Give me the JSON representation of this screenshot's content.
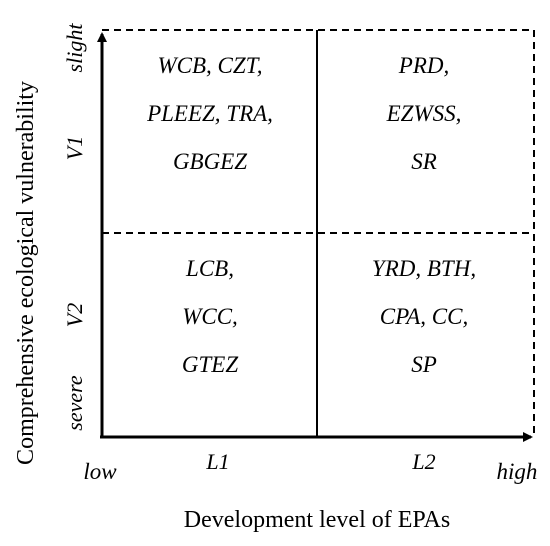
{
  "axes": {
    "y_label": "Comprehensive ecological vulnerability",
    "x_label": "Development level of EPAs",
    "y_top": "slight",
    "y_bottom": "severe",
    "y_levels": [
      "V1",
      "V2"
    ],
    "x_left": "low",
    "x_right": "high",
    "x_levels": [
      "L1",
      "L2"
    ]
  },
  "quadrants": {
    "top_left": [
      "WCB, CZT,",
      "PLEEZ, TRA,",
      "GBGEZ"
    ],
    "top_right": [
      "PRD,",
      "EZWSS,",
      "SR"
    ],
    "bottom_left": [
      "LCB,",
      "WCC,",
      "GTEZ"
    ],
    "bottom_right": [
      "YRD, BTH,",
      "CPA, CC,",
      "SP"
    ]
  }
}
